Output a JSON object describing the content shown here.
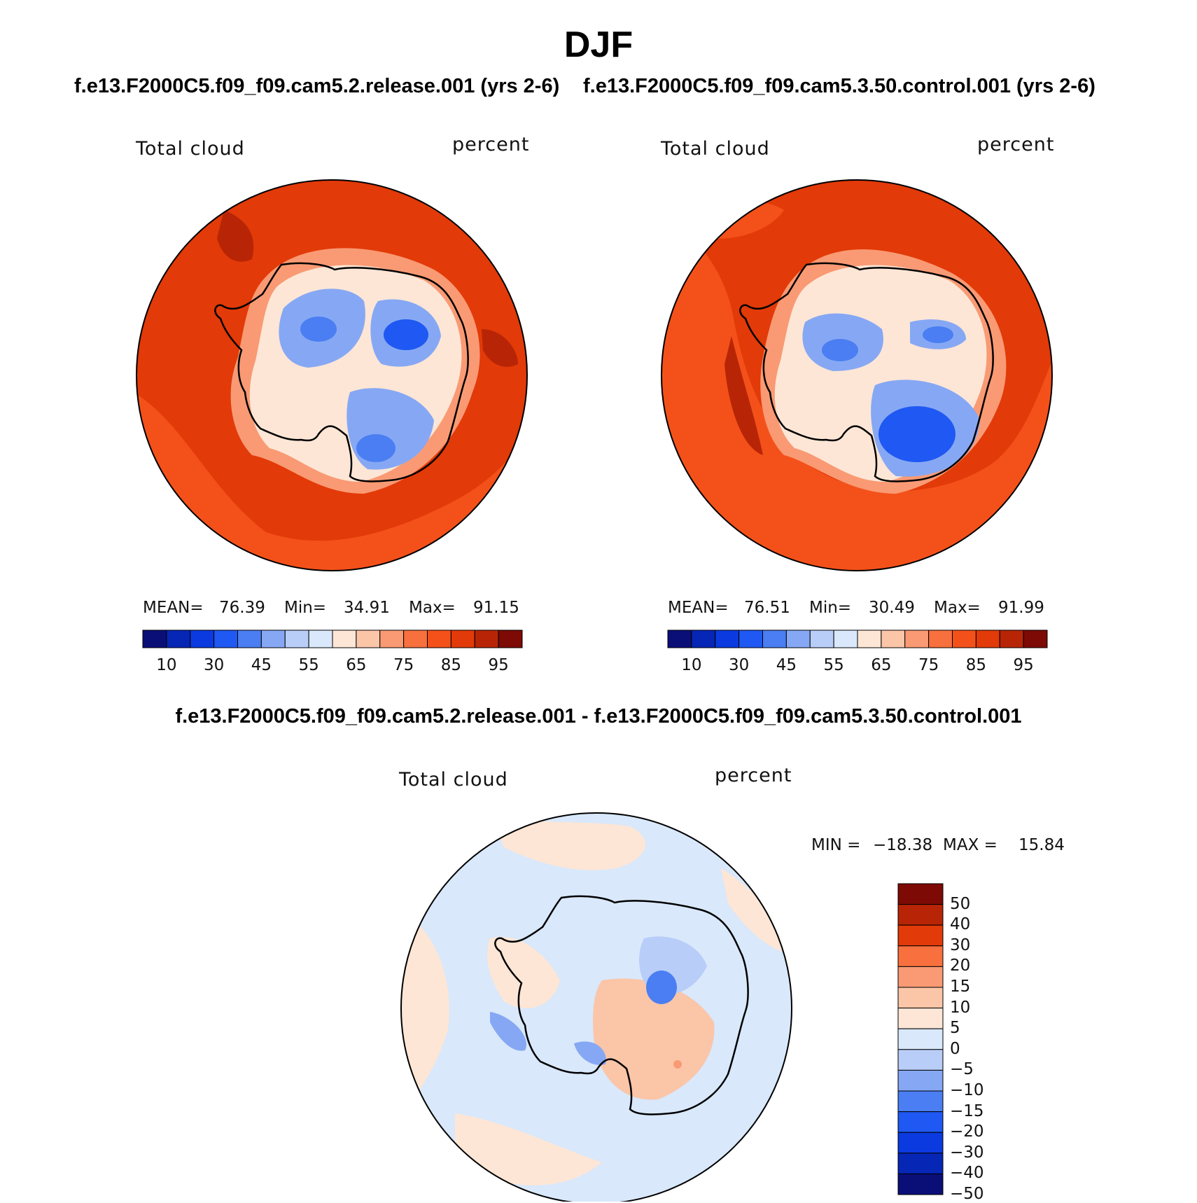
{
  "figure": {
    "title": "DJF",
    "case1_title": "f.e13.F2000C5.f09_f09.cam5.2.release.001 (yrs 2-6)",
    "case2_title": "f.e13.F2000C5.f09_f09.cam5.3.50.control.001 (yrs 2-6)",
    "diff_title": "f.e13.F2000C5.f09_f09.cam5.2.release.001 - f.e13.F2000C5.f09_f09.cam5.3.50.control.001"
  },
  "chart_data": [
    {
      "type": "heatmap",
      "projection": "south-polar-stereographic",
      "variable": "Total cloud",
      "units": "percent",
      "stats": {
        "mean_label": "MEAN=",
        "mean": "76.39",
        "min_label": "Min=",
        "min": "34.91",
        "max_label": "Max=",
        "max": "91.15"
      },
      "levels": [
        "10",
        "30",
        "45",
        "55",
        "65",
        "75",
        "85",
        "95"
      ],
      "colors": [
        "#0a0f78",
        "#0626b6",
        "#0a3ae0",
        "#1f58f2",
        "#4a7ef2",
        "#86a8f4",
        "#b8cdf7",
        "#d9e8fb",
        "#fde6d6",
        "#fbc5a8",
        "#f99a74",
        "#f8703d",
        "#f4511a",
        "#e23a08",
        "#b82506",
        "#7e0a05"
      ]
    },
    {
      "type": "heatmap",
      "projection": "south-polar-stereographic",
      "variable": "Total cloud",
      "units": "percent",
      "stats": {
        "mean_label": "MEAN=",
        "mean": "76.51",
        "min_label": "Min=",
        "min": "30.49",
        "max_label": "Max=",
        "max": "91.99"
      },
      "levels": [
        "10",
        "30",
        "45",
        "55",
        "65",
        "75",
        "85",
        "95"
      ],
      "colors": [
        "#0a0f78",
        "#0626b6",
        "#0a3ae0",
        "#1f58f2",
        "#4a7ef2",
        "#86a8f4",
        "#b8cdf7",
        "#d9e8fb",
        "#fde6d6",
        "#fbc5a8",
        "#f99a74",
        "#f8703d",
        "#f4511a",
        "#e23a08",
        "#b82506",
        "#7e0a05"
      ]
    },
    {
      "type": "heatmap",
      "projection": "south-polar-stereographic",
      "variable": "Total cloud",
      "units": "percent",
      "stats": {
        "min_label": "MIN =",
        "min": "−18.38",
        "max_label": "MAX =",
        "max": "15.84"
      },
      "levels": [
        "50",
        "40",
        "30",
        "20",
        "15",
        "10",
        "5",
        "0",
        "−5",
        "−10",
        "−15",
        "−20",
        "−30",
        "−40",
        "−50"
      ],
      "colors": [
        "#7e0a05",
        "#b82506",
        "#e23a08",
        "#f8703d",
        "#f99a74",
        "#fbc5a8",
        "#fde6d6",
        "#d9e8fb",
        "#b8cdf7",
        "#86a8f4",
        "#4a7ef2",
        "#1f58f2",
        "#0a3ae0",
        "#0626b6",
        "#0a0f78"
      ]
    }
  ]
}
